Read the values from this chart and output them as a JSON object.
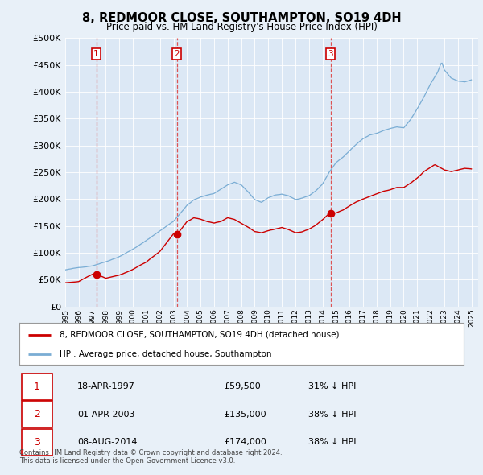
{
  "title": "8, REDMOOR CLOSE, SOUTHAMPTON, SO19 4DH",
  "subtitle": "Price paid vs. HM Land Registry's House Price Index (HPI)",
  "legend_label_red": "8, REDMOOR CLOSE, SOUTHAMPTON, SO19 4DH (detached house)",
  "legend_label_blue": "HPI: Average price, detached house, Southampton",
  "transactions": [
    {
      "num": 1,
      "date": "18-APR-1997",
      "price": "£59,500",
      "pct": "31% ↓ HPI",
      "year": 1997.29
    },
    {
      "num": 2,
      "date": "01-APR-2003",
      "price": "£135,000",
      "pct": "38% ↓ HPI",
      "year": 2003.25
    },
    {
      "num": 3,
      "date": "08-AUG-2014",
      "price": "£174,000",
      "pct": "38% ↓ HPI",
      "year": 2014.6
    }
  ],
  "transaction_prices": [
    59500,
    135000,
    174000
  ],
  "footer": "Contains HM Land Registry data © Crown copyright and database right 2024.\nThis data is licensed under the Open Government Licence v3.0.",
  "bg_color": "#e8f0f8",
  "plot_bg_color": "#dce8f5",
  "red_color": "#cc0000",
  "blue_color": "#7aadd4",
  "vline_color": "#dd4444",
  "grid_color": "#ffffff",
  "ylim_max": 500000,
  "xlim_start": 1995.0,
  "xlim_end": 2025.5
}
